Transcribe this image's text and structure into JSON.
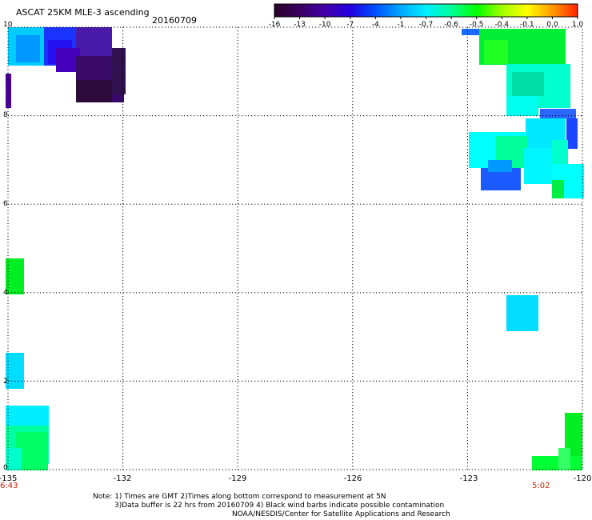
{
  "header": {
    "title": "ASCAT 25KM MLE-3 ascending",
    "date": "20160709"
  },
  "colorbar": {
    "labels": [
      "-16",
      "-13",
      "-10",
      "-7",
      "-4",
      "-1",
      "-0.7",
      "-0.6",
      "-0.5",
      "-0.4",
      "-0.1",
      "0.0",
      "1.0"
    ],
    "colors": [
      "#2a0028",
      "#3a0060",
      "#4400a8",
      "#2200e0",
      "#0050ff",
      "#00a8ff",
      "#00f0ff",
      "#00ff99",
      "#00ff00",
      "#a0ff00",
      "#ffff00",
      "#ff9900",
      "#ff2200"
    ]
  },
  "axes": {
    "x_ticks": [
      "-135",
      "-132",
      "-129",
      "-126",
      "-123",
      "-120"
    ],
    "y_ticks": [
      "10",
      "8",
      "6",
      "4",
      "2",
      "0"
    ],
    "lon_range": [
      -135,
      -120
    ],
    "lat_range": [
      0,
      10
    ]
  },
  "times": {
    "left": "6:43",
    "right": "5:02"
  },
  "notes": {
    "line1": "Note: 1) Times are GMT 2)Times along bottom correspond to measurement at 5N",
    "line2": "3)Data buffer is 22 hrs from 20160709 4) Black wind barbs indicate possible contamination",
    "line3": "NOAA/NESDIS/Center for Satellite Applications and Research"
  }
}
